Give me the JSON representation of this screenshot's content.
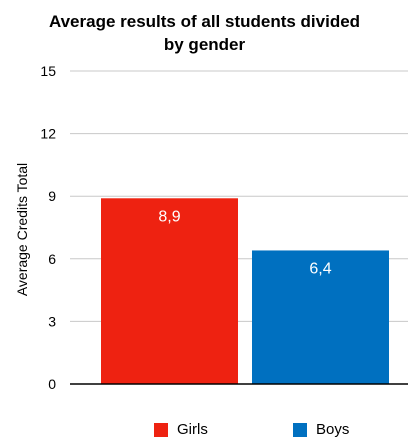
{
  "chart_data": {
    "type": "bar",
    "title_lines": [
      "Average results of all students divided",
      "by gender"
    ],
    "ylabel": "Average Credits Total",
    "xlabel": "",
    "ylim": [
      0,
      15
    ],
    "yticks": [
      0,
      3,
      6,
      9,
      12,
      15
    ],
    "grid": true,
    "legend_position": "bottom",
    "series": [
      {
        "name": "Girls",
        "value": 8.9,
        "label": "8,9",
        "color": "#ee2211"
      },
      {
        "name": "Boys",
        "value": 6.4,
        "label": "6,4",
        "color": "#0070c0"
      }
    ]
  }
}
